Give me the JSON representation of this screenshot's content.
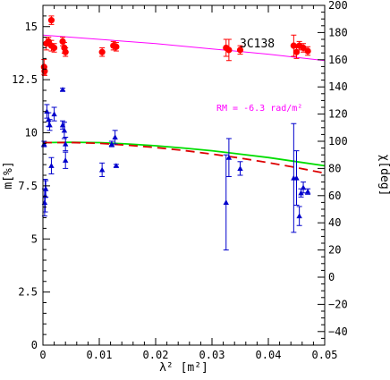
{
  "chart_data": {
    "type": "scatter",
    "source_label": "3C138",
    "annotation": "RM = -6.3 rad/m²",
    "xlabel": "λ² [m²]",
    "ylabel_left": "m[%]",
    "ylabel_right": "χ[deg]",
    "xlim": [
      0,
      0.05
    ],
    "ylim_left": [
      0,
      16
    ],
    "ylim_right": [
      -50,
      200
    ],
    "x_ticks": [
      0,
      0.01,
      0.02,
      0.03,
      0.04,
      0.05
    ],
    "x_tick_labels": [
      "0",
      "0.01",
      "0.02",
      "0.03",
      "0.04",
      "0.05"
    ],
    "y_left_ticks": [
      0,
      2.5,
      5,
      7.5,
      10,
      12.5,
      15
    ],
    "y_left_tick_labels": [
      "0",
      "2.5",
      "5",
      "7.5",
      "10",
      "12.5",
      "15"
    ],
    "y_right_ticks": [
      -40,
      -20,
      0,
      20,
      40,
      60,
      80,
      100,
      120,
      140,
      160,
      180,
      200
    ],
    "y_right_tick_labels": [
      "−40",
      "−20",
      "0",
      "20",
      "40",
      "60",
      "80",
      "100",
      "120",
      "140",
      "160",
      "180",
      "200"
    ],
    "grid": false,
    "colors": {
      "frac_pol_points": "#ff0000",
      "angle_points": "#0000cc",
      "fit_line_magenta": "#ff00ff",
      "fit_line_green": "#00dd00",
      "fit_line_red_dashed": "#dd0000",
      "annotation_color": "#ff00ff"
    },
    "series": [
      {
        "marker": "circle",
        "axis": "left",
        "points": [
          {
            "x": 0.0002,
            "y": 13.1,
            "err": 0.35
          },
          {
            "x": 0.0003,
            "y": 12.9,
            "err": 0.2
          },
          {
            "x": 0.0006,
            "y": 14.2,
            "err": 0.3
          },
          {
            "x": 0.001,
            "y": 14.3,
            "err": 0.2
          },
          {
            "x": 0.0015,
            "y": 15.3,
            "err": 0.2
          },
          {
            "x": 0.0015,
            "y": 14.1,
            "err": 0.25
          },
          {
            "x": 0.002,
            "y": 14.0,
            "err": 0.2
          },
          {
            "x": 0.0035,
            "y": 14.3,
            "err": 0.2
          },
          {
            "x": 0.0038,
            "y": 14.0,
            "err": 0.25
          },
          {
            "x": 0.004,
            "y": 13.8,
            "err": 0.2
          },
          {
            "x": 0.0105,
            "y": 13.8,
            "err": 0.2
          },
          {
            "x": 0.0125,
            "y": 14.1,
            "err": 0.2
          },
          {
            "x": 0.013,
            "y": 14.05,
            "err": 0.2
          },
          {
            "x": 0.0325,
            "y": 14.0,
            "err": 0.4
          },
          {
            "x": 0.033,
            "y": 13.9,
            "err": 0.5
          },
          {
            "x": 0.035,
            "y": 13.9,
            "err": 0.2
          },
          {
            "x": 0.0445,
            "y": 14.1,
            "err": 0.5
          },
          {
            "x": 0.045,
            "y": 13.8,
            "err": 0.3
          },
          {
            "x": 0.0455,
            "y": 14.1,
            "err": 0.2
          },
          {
            "x": 0.0462,
            "y": 14.0,
            "err": 0.2
          },
          {
            "x": 0.047,
            "y": 13.85,
            "err": 0.2
          }
        ]
      },
      {
        "marker": "triangle",
        "axis": "right",
        "points": [
          {
            "x": 0.0002,
            "y": 98,
            "err": 2
          },
          {
            "x": 0.0003,
            "y": 55,
            "err": 10
          },
          {
            "x": 0.0004,
            "y": 60,
            "err": 12
          },
          {
            "x": 0.0005,
            "y": 65,
            "err": 6
          },
          {
            "x": 0.0007,
            "y": 122,
            "err": 5
          },
          {
            "x": 0.001,
            "y": 116,
            "err": 5
          },
          {
            "x": 0.0012,
            "y": 112,
            "err": 4
          },
          {
            "x": 0.0015,
            "y": 82,
            "err": 6
          },
          {
            "x": 0.002,
            "y": 120,
            "err": 5
          },
          {
            "x": 0.0035,
            "y": 138,
            "err": 1
          },
          {
            "x": 0.0035,
            "y": 112,
            "err": 3
          },
          {
            "x": 0.0038,
            "y": 108,
            "err": 6
          },
          {
            "x": 0.004,
            "y": 98,
            "err": 5
          },
          {
            "x": 0.004,
            "y": 86,
            "err": 6
          },
          {
            "x": 0.0105,
            "y": 79,
            "err": 5
          },
          {
            "x": 0.0122,
            "y": 98,
            "err": 2
          },
          {
            "x": 0.0128,
            "y": 103,
            "err": 5
          },
          {
            "x": 0.013,
            "y": 82,
            "err": 1
          },
          {
            "x": 0.0325,
            "y": 55,
            "err": 35
          },
          {
            "x": 0.033,
            "y": 88,
            "err": 14
          },
          {
            "x": 0.035,
            "y": 80,
            "err": 5
          },
          {
            "x": 0.0445,
            "y": 73,
            "err": 40
          },
          {
            "x": 0.045,
            "y": 73,
            "err": 20
          },
          {
            "x": 0.0455,
            "y": 45,
            "err": 7
          },
          {
            "x": 0.0458,
            "y": 62,
            "err": 3
          },
          {
            "x": 0.0462,
            "y": 66,
            "err": 4
          },
          {
            "x": 0.047,
            "y": 63,
            "err": 2
          }
        ]
      }
    ],
    "lines": [
      {
        "style": "solid",
        "color": "#ff00ff",
        "axis": "left",
        "x": [
          0,
          0.01,
          0.02,
          0.03,
          0.04,
          0.05
        ],
        "y": [
          14.6,
          14.4,
          14.2,
          13.95,
          13.7,
          13.4
        ]
      },
      {
        "style": "solid",
        "color": "#00dd00",
        "axis": "right",
        "x": [
          0,
          0.005,
          0.01,
          0.015,
          0.02,
          0.025,
          0.03,
          0.035,
          0.04,
          0.045,
          0.05
        ],
        "y": [
          99,
          99.3,
          99,
          98,
          96.7,
          95,
          93,
          90.5,
          88,
          85,
          82
        ]
      },
      {
        "style": "dashed",
        "color": "#dd0000",
        "axis": "right",
        "x": [
          0,
          0.005,
          0.01,
          0.015,
          0.02,
          0.025,
          0.03,
          0.035,
          0.04,
          0.045,
          0.05
        ],
        "y": [
          99,
          99.1,
          98.5,
          97.1,
          95.4,
          93.2,
          90.6,
          87.6,
          84.3,
          80.6,
          76.5
        ]
      }
    ]
  }
}
